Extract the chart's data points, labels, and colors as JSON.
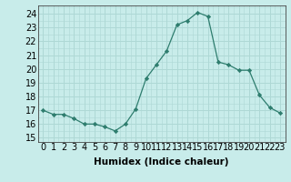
{
  "x": [
    0,
    1,
    2,
    3,
    4,
    5,
    6,
    7,
    8,
    9,
    10,
    11,
    12,
    13,
    14,
    15,
    16,
    17,
    18,
    19,
    20,
    21,
    22,
    23
  ],
  "y": [
    17.0,
    16.7,
    16.7,
    16.4,
    16.0,
    16.0,
    15.8,
    15.5,
    16.0,
    17.1,
    19.3,
    20.3,
    21.3,
    23.2,
    23.5,
    24.1,
    23.8,
    20.5,
    20.3,
    19.9,
    19.9,
    18.1,
    17.2,
    16.8
  ],
  "line_color": "#2e7d6e",
  "marker": "D",
  "markersize": 2.2,
  "bg_color": "#c8ecea",
  "grid_color": "#aed8d5",
  "xlabel": "Humidex (Indice chaleur)",
  "ylabel_ticks": [
    15,
    16,
    17,
    18,
    19,
    20,
    21,
    22,
    23,
    24
  ],
  "ylim": [
    14.7,
    24.6
  ],
  "xlim": [
    -0.5,
    23.5
  ],
  "xlabel_fontsize": 7.5,
  "tick_fontsize": 7
}
